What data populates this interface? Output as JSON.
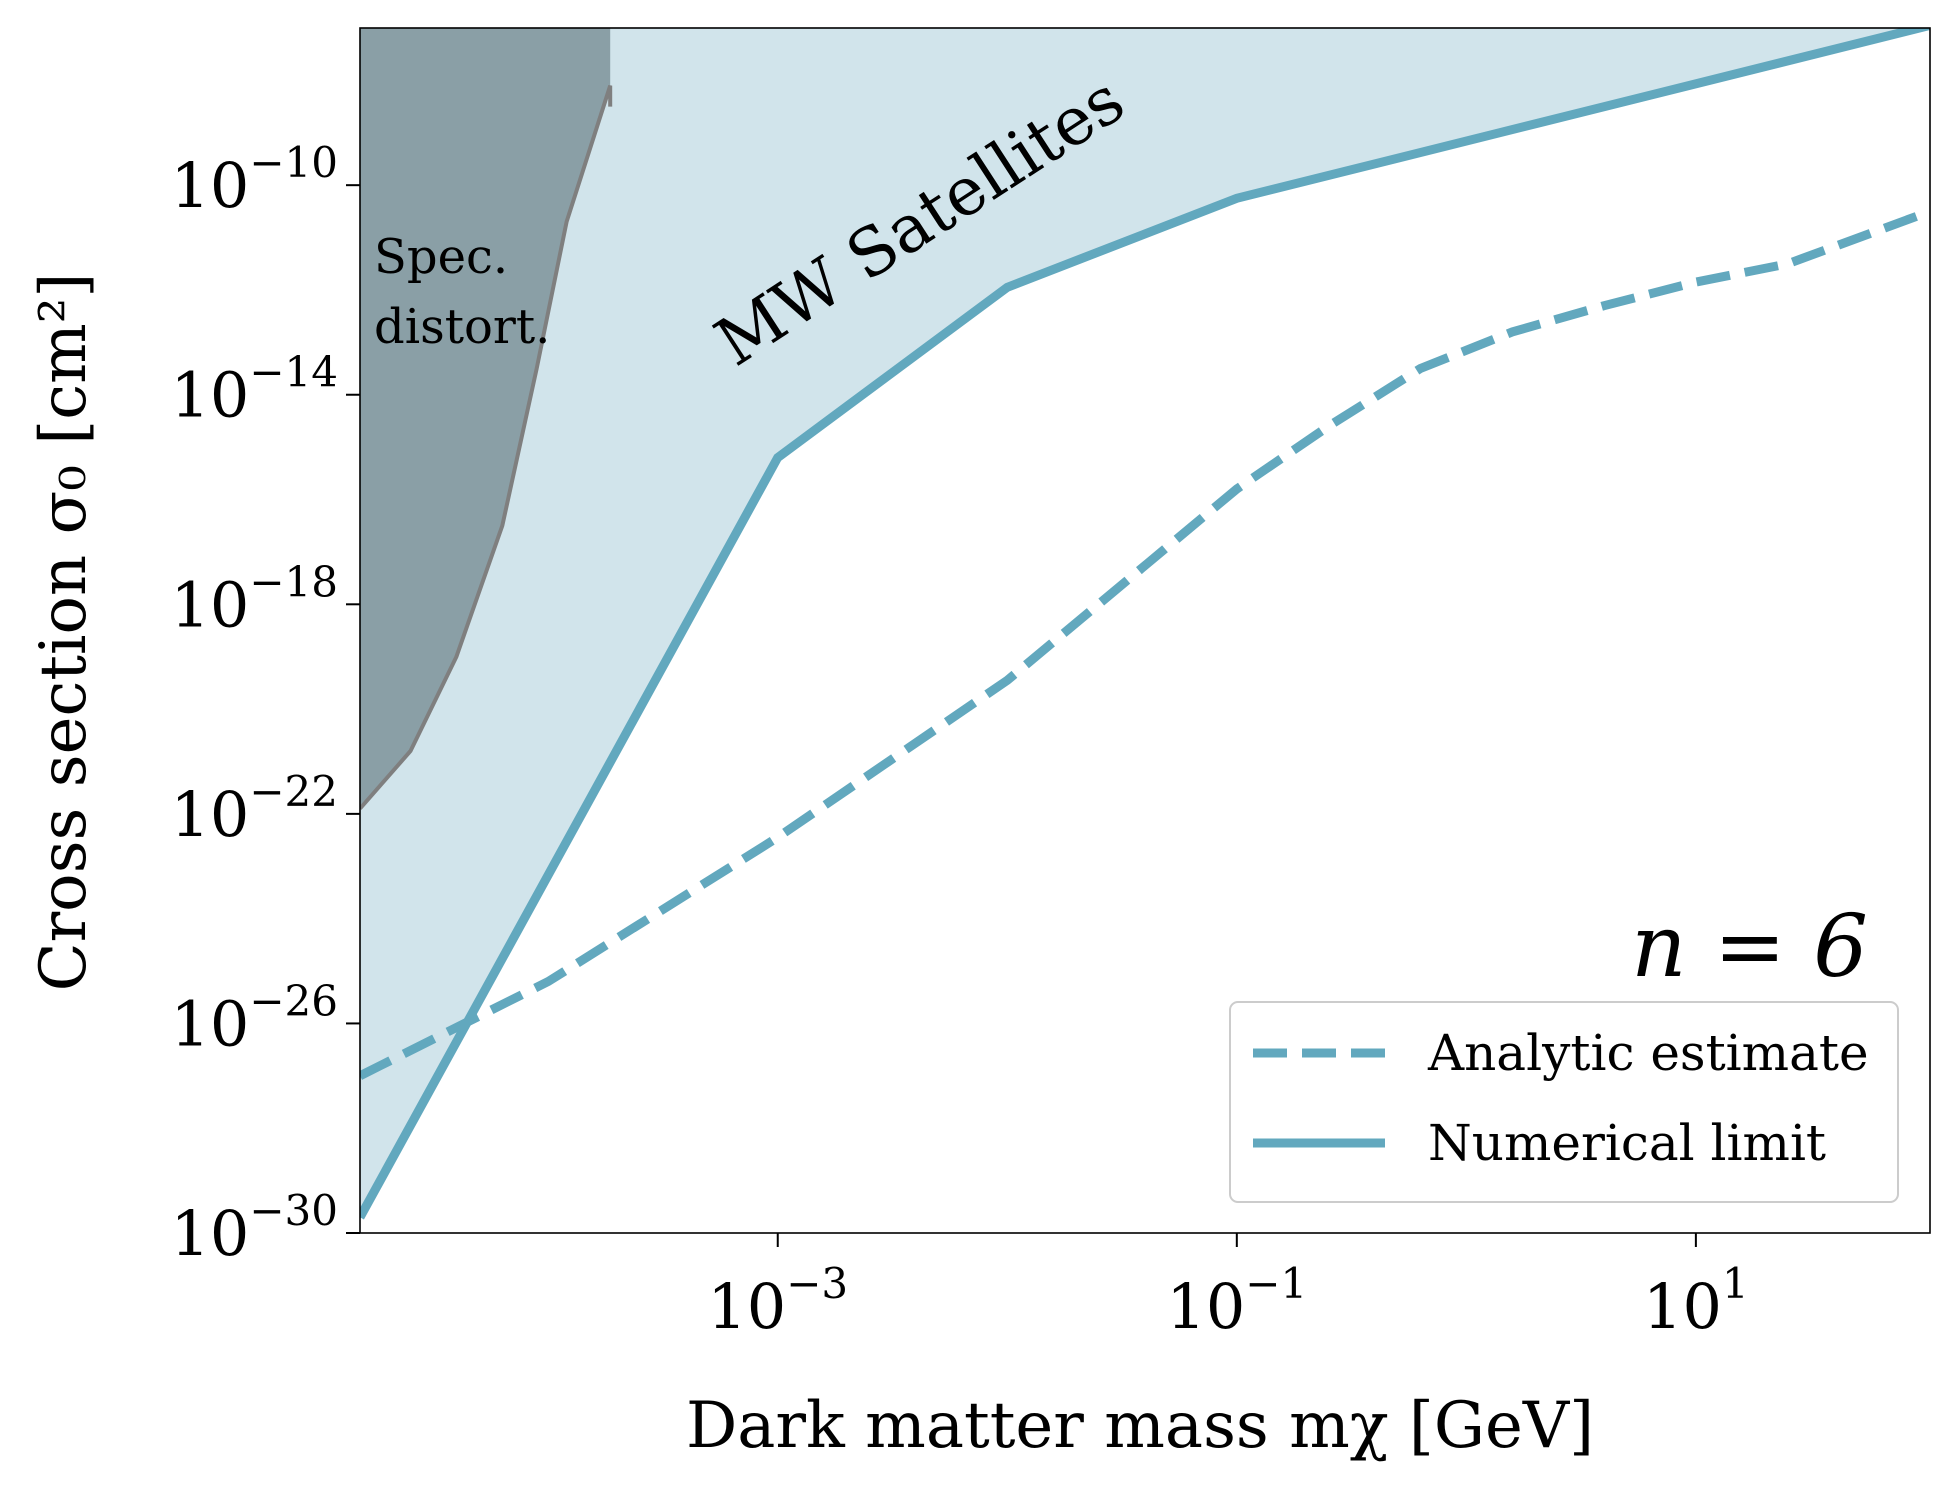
{
  "colors": {
    "line": "#62a8be",
    "satellite_fill": "#d1e4eb",
    "spec_fill": "#8a9fa6",
    "spec_edge": "#7f7f7f",
    "axis": "#000000",
    "legend_border": "#cccccc"
  },
  "chart_data": {
    "type": "line",
    "x_scale": "log",
    "y_scale": "log",
    "xlim_log10": [
      -4.82,
      2.02
    ],
    "ylim_log10": [
      -30,
      -7
    ],
    "xlabel": "Dark matter mass mχ [GeV]",
    "ylabel": "Cross section σ₀ [cm²]",
    "x_ticks": [
      {
        "log10": -3,
        "base": "10",
        "exp": "−3"
      },
      {
        "log10": -1,
        "base": "10",
        "exp": "−1"
      },
      {
        "log10": 1,
        "base": "10",
        "exp": "1"
      }
    ],
    "y_ticks": [
      {
        "log10": -30,
        "base": "10",
        "exp": "−30"
      },
      {
        "log10": -26,
        "base": "10",
        "exp": "−26"
      },
      {
        "log10": -22,
        "base": "10",
        "exp": "−22"
      },
      {
        "log10": -18,
        "base": "10",
        "exp": "−18"
      },
      {
        "log10": -14,
        "base": "10",
        "exp": "−14"
      },
      {
        "log10": -10,
        "base": "10",
        "exp": "−10"
      }
    ],
    "series": [
      {
        "name": "Analytic estimate",
        "style": "dashed",
        "points_log10": [
          [
            -4.82,
            -27.0
          ],
          [
            -4.0,
            -25.2
          ],
          [
            -3.0,
            -22.45
          ],
          [
            -2.0,
            -19.45
          ],
          [
            -1.0,
            -15.8
          ],
          [
            -0.6,
            -14.6
          ],
          [
            -0.2,
            -13.5
          ],
          [
            0.2,
            -12.8
          ],
          [
            0.6,
            -12.3
          ],
          [
            1.0,
            -11.85
          ],
          [
            1.4,
            -11.5
          ],
          [
            2.02,
            -10.5
          ]
        ]
      },
      {
        "name": "Numerical limit",
        "style": "solid",
        "points_log10": [
          [
            -4.82,
            -29.7
          ],
          [
            -3.0,
            -15.2
          ],
          [
            -2.0,
            -11.95
          ],
          [
            -1.0,
            -10.25
          ],
          [
            2.02,
            -6.95
          ]
        ]
      }
    ],
    "regions": [
      {
        "name": "MW Satellites",
        "label": "MW Satellites",
        "description": "excluded region above the numerical limit"
      },
      {
        "name": "Spectral distortion",
        "label_lines": [
          "Spec.",
          "distort."
        ],
        "boundary_log10": [
          [
            -4.82,
            -21.9
          ],
          [
            -4.6,
            -20.8
          ],
          [
            -4.4,
            -19.0
          ],
          [
            -4.2,
            -16.5
          ],
          [
            -4.05,
            -13.5
          ],
          [
            -3.92,
            -10.7
          ],
          [
            -3.73,
            -8.1
          ],
          [
            -3.73,
            -7.0
          ]
        ],
        "edge_top_log10": [
          -3.73,
          -8.5
        ]
      }
    ],
    "annotation": "n = 6",
    "legend": {
      "placement": "lower-right",
      "entries": [
        {
          "label": "Analytic estimate",
          "style": "dashed"
        },
        {
          "label": "Numerical limit",
          "style": "solid"
        }
      ]
    }
  }
}
